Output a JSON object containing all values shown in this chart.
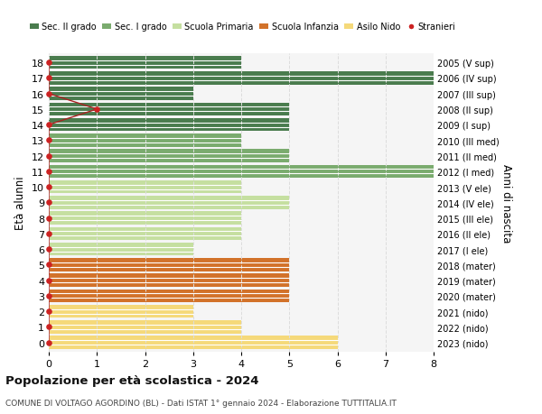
{
  "ages": [
    18,
    17,
    16,
    15,
    14,
    13,
    12,
    11,
    10,
    9,
    8,
    7,
    6,
    5,
    4,
    3,
    2,
    1,
    0
  ],
  "right_labels": [
    "2005 (V sup)",
    "2006 (IV sup)",
    "2007 (III sup)",
    "2008 (II sup)",
    "2009 (I sup)",
    "2010 (III med)",
    "2011 (II med)",
    "2012 (I med)",
    "2013 (V ele)",
    "2014 (IV ele)",
    "2015 (III ele)",
    "2016 (II ele)",
    "2017 (I ele)",
    "2018 (mater)",
    "2019 (mater)",
    "2020 (mater)",
    "2021 (nido)",
    "2022 (nido)",
    "2023 (nido)"
  ],
  "bar_values": [
    4,
    8,
    3,
    5,
    5,
    4,
    5,
    8,
    4,
    5,
    4,
    4,
    3,
    5,
    5,
    5,
    3,
    4,
    6
  ],
  "bar_colors": [
    "#4a7c4e",
    "#4a7c4e",
    "#4a7c4e",
    "#4a7c4e",
    "#4a7c4e",
    "#7aab6e",
    "#7aab6e",
    "#7aab6e",
    "#c5dfa0",
    "#c5dfa0",
    "#c5dfa0",
    "#c5dfa0",
    "#c5dfa0",
    "#d2722a",
    "#d2722a",
    "#d2722a",
    "#f5d97a",
    "#f5d97a",
    "#f5d97a"
  ],
  "stranieri_ages": [
    18,
    17,
    16,
    15,
    14,
    13,
    12,
    11,
    10,
    9,
    8,
    7,
    6,
    5,
    4,
    3,
    2,
    1,
    0
  ],
  "stranieri_x": [
    0,
    0,
    0,
    1,
    0,
    0,
    0,
    0,
    0,
    0,
    0,
    0,
    0,
    0,
    0,
    0,
    0,
    0,
    0
  ],
  "legend_labels": [
    "Sec. II grado",
    "Sec. I grado",
    "Scuola Primaria",
    "Scuola Infanzia",
    "Asilo Nido",
    "Stranieri"
  ],
  "legend_colors": [
    "#4a7c4e",
    "#7aab6e",
    "#c5dfa0",
    "#d2722a",
    "#f5d97a",
    "#cc2222"
  ],
  "title1": "Popolazione per età scolastica - 2024",
  "title2": "COMUNE DI VOLTAGO AGORDINO (BL) - Dati ISTAT 1° gennaio 2024 - Elaborazione TUTTITALIA.IT",
  "ylabel": "Età alunni",
  "right_ylabel": "Anni di nascita",
  "xlim": [
    0,
    8
  ],
  "xticks": [
    0,
    1,
    2,
    3,
    4,
    5,
    6,
    7,
    8
  ],
  "bg_color": "#ffffff",
  "plot_bg_color": "#f5f5f5",
  "bar_height": 0.85,
  "stranieri_line_color": "#aa2222",
  "stranieri_dot_color": "#cc2222",
  "grid_color": "#dddddd"
}
